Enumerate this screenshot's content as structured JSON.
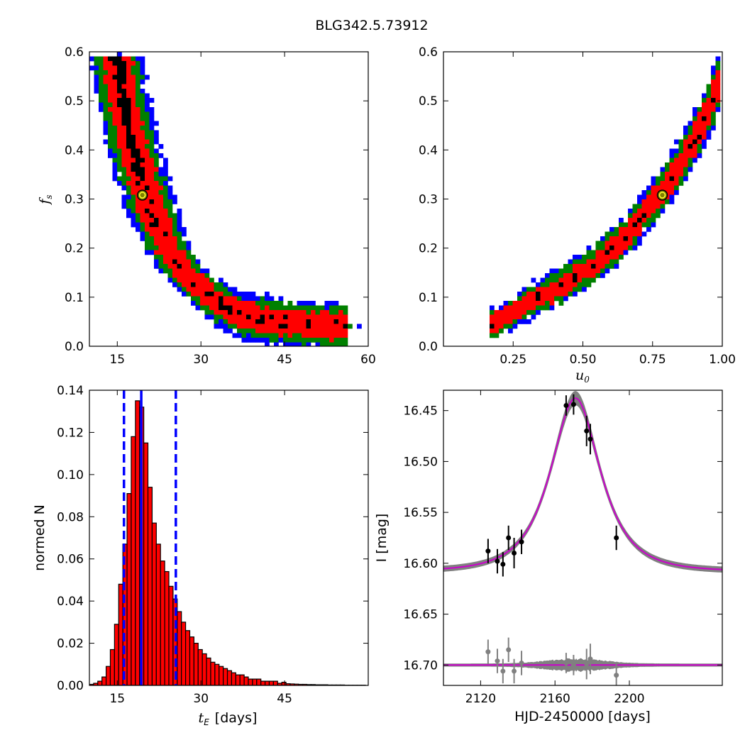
{
  "title": "BLG342.5.73912",
  "chart_data": [
    {
      "id": "tE_fs",
      "type": "heatmap",
      "title": "",
      "xlabel": "",
      "ylabel_main": "f",
      "ylabel_sub": "s",
      "xlim": [
        10,
        60
      ],
      "ylim": [
        0,
        0.6
      ],
      "xticks": [
        15,
        30,
        45,
        60
      ],
      "xtick_labels": [
        "15",
        "30",
        "45",
        "60"
      ],
      "yticks": [
        0.0,
        0.1,
        0.2,
        0.3,
        0.4,
        0.5,
        0.6
      ],
      "ytick_labels": [
        "0.0",
        "0.1",
        "0.2",
        "0.3",
        "0.4",
        "0.5",
        "0.6"
      ],
      "contour_colors": {
        "outer": "#0000ff",
        "mid": "#008000",
        "inner": "#ff0000",
        "core": "#000000"
      },
      "ridge": [
        [
          15.0,
          0.59
        ],
        [
          15.5,
          0.53
        ],
        [
          17.0,
          0.45
        ],
        [
          18.0,
          0.4
        ],
        [
          19.5,
          0.34
        ],
        [
          21.0,
          0.29
        ],
        [
          22.5,
          0.24
        ],
        [
          24.0,
          0.2
        ],
        [
          26.5,
          0.16
        ],
        [
          29.5,
          0.12
        ],
        [
          33.0,
          0.09
        ],
        [
          37.0,
          0.065
        ],
        [
          43.0,
          0.05
        ],
        [
          50.0,
          0.043
        ],
        [
          56.0,
          0.04
        ]
      ],
      "best_fit": {
        "x": 19.5,
        "y": 0.308
      }
    },
    {
      "id": "u0_fs",
      "type": "heatmap",
      "title": "",
      "xlabel_main": "u",
      "xlabel_sub": "0",
      "ylabel": "",
      "xlim": [
        0.0,
        1.0
      ],
      "ylim": [
        0,
        0.6
      ],
      "xticks": [
        0.25,
        0.5,
        0.75,
        1.0
      ],
      "xtick_labels": [
        "0.25",
        "0.50",
        "0.75",
        "1.00"
      ],
      "yticks": [
        0.0,
        0.1,
        0.2,
        0.3,
        0.4,
        0.5,
        0.6
      ],
      "ytick_labels": [
        "0.0",
        "0.1",
        "0.2",
        "0.3",
        "0.4",
        "0.5",
        "0.6"
      ],
      "contour_colors": {
        "outer": "#0000ff",
        "mid": "#008000",
        "inner": "#ff0000",
        "core": "#000000"
      },
      "ridge": [
        [
          0.17,
          0.04
        ],
        [
          0.25,
          0.07
        ],
        [
          0.35,
          0.1
        ],
        [
          0.45,
          0.13
        ],
        [
          0.55,
          0.17
        ],
        [
          0.65,
          0.22
        ],
        [
          0.72,
          0.27
        ],
        [
          0.78,
          0.31
        ],
        [
          0.85,
          0.37
        ],
        [
          0.92,
          0.44
        ],
        [
          0.98,
          0.52
        ],
        [
          1.0,
          0.56
        ]
      ],
      "best_fit": {
        "x": 0.785,
        "y": 0.308
      }
    },
    {
      "id": "tE_hist",
      "type": "bar",
      "title": "",
      "xlabel_main": "t",
      "xlabel_sub": "E",
      "xlabel_rest": "[days]",
      "ylabel": "normed N",
      "xlim": [
        10,
        60
      ],
      "ylim": [
        0,
        0.14
      ],
      "xticks": [
        15,
        30,
        45
      ],
      "xtick_labels": [
        "15",
        "30",
        "45"
      ],
      "yticks": [
        0.0,
        0.02,
        0.04,
        0.06,
        0.08,
        0.1,
        0.12,
        0.14
      ],
      "ytick_labels": [
        "0.00",
        "0.02",
        "0.04",
        "0.06",
        "0.08",
        "0.10",
        "0.12",
        "0.14"
      ],
      "bar_color": "#ff0000",
      "bin_width": 0.75,
      "bin_start": 10.0,
      "values": [
        0.0005,
        0.001,
        0.002,
        0.004,
        0.009,
        0.017,
        0.029,
        0.048,
        0.067,
        0.091,
        0.118,
        0.135,
        0.132,
        0.115,
        0.094,
        0.077,
        0.067,
        0.059,
        0.054,
        0.047,
        0.041,
        0.035,
        0.03,
        0.026,
        0.023,
        0.02,
        0.017,
        0.015,
        0.013,
        0.011,
        0.01,
        0.009,
        0.008,
        0.007,
        0.006,
        0.005,
        0.005,
        0.004,
        0.003,
        0.003,
        0.003,
        0.002,
        0.002,
        0.002,
        0.002,
        0.001,
        0.0015,
        0.0008,
        0.0007,
        0.0006,
        0.0005,
        0.0005,
        0.0004,
        0.0004,
        0.0003,
        0.0003,
        0.0003,
        0.0002,
        0.0002,
        0.0002,
        0.0002,
        0.0001,
        0.0001,
        0.0001,
        0.0001,
        0.0001
      ],
      "median_line": {
        "x": 19.3,
        "color": "#0000ff"
      },
      "interval_lines": {
        "x": [
          16.2,
          25.5
        ],
        "color": "#0000ff"
      }
    },
    {
      "id": "lightcurve",
      "type": "scatter",
      "title": "",
      "xlabel": "HJD-2450000 [days]",
      "ylabel": "I [mag]",
      "xlim": [
        2100,
        2250
      ],
      "ylim": [
        16.72,
        16.43
      ],
      "xticks": [
        2120,
        2160,
        2200
      ],
      "xtick_labels": [
        "2120",
        "2160",
        "2200"
      ],
      "yticks": [
        16.45,
        16.5,
        16.55,
        16.6,
        16.65,
        16.7
      ],
      "ytick_labels": [
        "16.45",
        "16.50",
        "16.55",
        "16.60",
        "16.65",
        "16.70"
      ],
      "model": {
        "t0": 2171,
        "tE": 19.5,
        "u0": 0.785,
        "fs": 0.308,
        "baseline": 16.608,
        "color": "#cc00cc",
        "band_color": "#808080"
      },
      "points": [
        {
          "x": 2124,
          "y": 16.588,
          "err": 0.012
        },
        {
          "x": 2129,
          "y": 16.598,
          "err": 0.012
        },
        {
          "x": 2132,
          "y": 16.601,
          "err": 0.012
        },
        {
          "x": 2135,
          "y": 16.575,
          "err": 0.012
        },
        {
          "x": 2138,
          "y": 16.59,
          "err": 0.015
        },
        {
          "x": 2142,
          "y": 16.579,
          "err": 0.012
        },
        {
          "x": 2166,
          "y": 16.445,
          "err": 0.01
        },
        {
          "x": 2170,
          "y": 16.444,
          "err": 0.01
        },
        {
          "x": 2177,
          "y": 16.47,
          "err": 0.015
        },
        {
          "x": 2179,
          "y": 16.478,
          "err": 0.015
        },
        {
          "x": 2193,
          "y": 16.575,
          "err": 0.012
        }
      ],
      "residual_baseline": 16.7,
      "residuals": [
        {
          "x": 2124,
          "y": 16.687,
          "err": 0.012
        },
        {
          "x": 2129,
          "y": 16.696,
          "err": 0.012
        },
        {
          "x": 2132,
          "y": 16.706,
          "err": 0.012
        },
        {
          "x": 2135,
          "y": 16.685,
          "err": 0.012
        },
        {
          "x": 2138,
          "y": 16.706,
          "err": 0.012
        },
        {
          "x": 2142,
          "y": 16.698,
          "err": 0.012
        },
        {
          "x": 2166,
          "y": 16.698,
          "err": 0.01
        },
        {
          "x": 2170,
          "y": 16.7,
          "err": 0.01
        },
        {
          "x": 2177,
          "y": 16.699,
          "err": 0.015
        },
        {
          "x": 2179,
          "y": 16.694,
          "err": 0.015
        },
        {
          "x": 2193,
          "y": 16.71,
          "err": 0.012
        }
      ],
      "point_color": "#000000",
      "residual_color": "#808080"
    }
  ]
}
